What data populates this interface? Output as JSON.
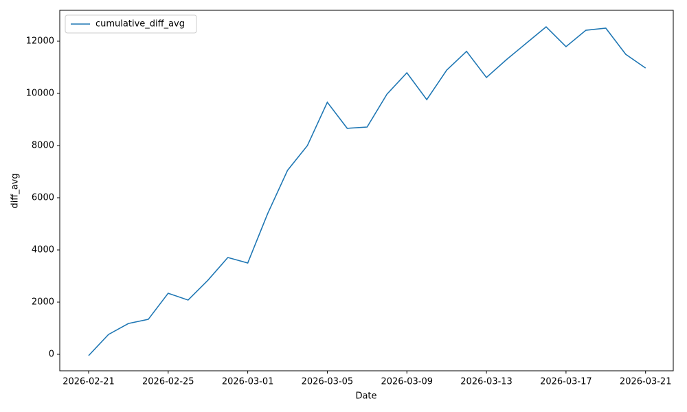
{
  "chart_data": {
    "type": "line",
    "x_label": "Date",
    "y_label": "diff_avg",
    "x": [
      "2026-02-21",
      "2026-02-22",
      "2026-02-23",
      "2026-02-24",
      "2026-02-25",
      "2026-02-26",
      "2026-02-27",
      "2026-02-28",
      "2026-03-01",
      "2026-03-02",
      "2026-03-03",
      "2026-03-04",
      "2026-03-05",
      "2026-03-06",
      "2026-03-07",
      "2026-03-08",
      "2026-03-09",
      "2026-03-10",
      "2026-03-11",
      "2026-03-12",
      "2026-03-13",
      "2026-03-14",
      "2026-03-15",
      "2026-03-16",
      "2026-03-17",
      "2026-03-18",
      "2026-03-19",
      "2026-03-20",
      "2026-03-21"
    ],
    "series": [
      {
        "name": "cumulative_diff_avg",
        "color": "#1f77b4",
        "values": [
          -50,
          760,
          1180,
          1340,
          2340,
          2080,
          2840,
          3710,
          3500,
          5390,
          7050,
          8000,
          9660,
          8660,
          8710,
          9970,
          10790,
          9760,
          10890,
          11610,
          10610,
          11290,
          11920,
          12550,
          11790,
          12420,
          12500,
          11500,
          10970
        ]
      }
    ],
    "xlim": [
      "2026-02-19T13:12",
      "2026-03-22T09:24"
    ],
    "xticks": [
      "2026-02-21",
      "2026-02-25",
      "2026-03-01",
      "2026-03-05",
      "2026-03-09",
      "2026-03-13",
      "2026-03-17",
      "2026-03-21"
    ],
    "ylim": [
      -632,
      13184
    ],
    "yticks": [
      0,
      2000,
      4000,
      6000,
      8000,
      10000,
      12000
    ],
    "legend": "upper left",
    "grid": false
  }
}
